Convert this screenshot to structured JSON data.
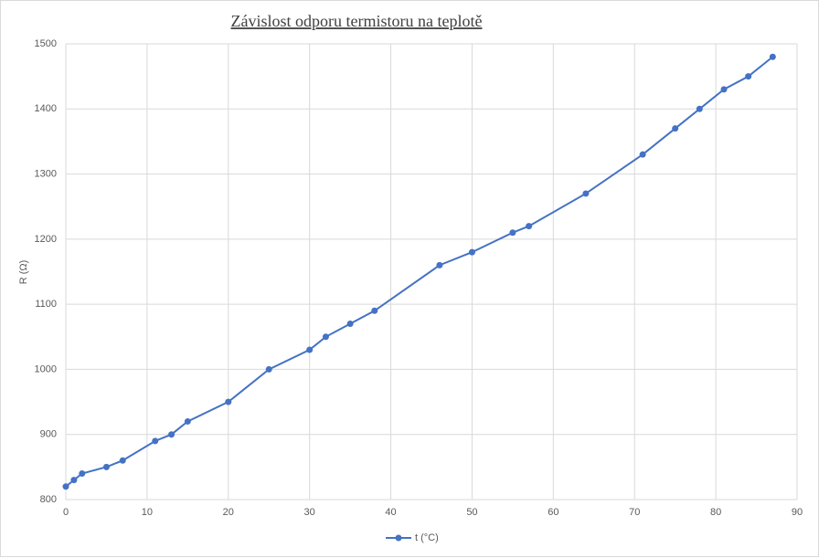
{
  "chart_data": {
    "type": "line",
    "title": "Závislost odporu termistoru na teplotě",
    "y_label": "R (Ω)",
    "x": [
      0,
      1,
      2,
      5,
      7,
      11,
      13,
      15,
      20,
      25,
      30,
      32,
      35,
      38,
      46,
      50,
      55,
      57,
      64,
      71,
      75,
      78,
      81,
      84,
      87
    ],
    "series": [
      {
        "name": "t (°C)",
        "color": "#4472c4",
        "values": [
          820,
          830,
          840,
          850,
          860,
          890,
          900,
          920,
          950,
          1000,
          1030,
          1050,
          1070,
          1090,
          1160,
          1180,
          1210,
          1220,
          1270,
          1330,
          1370,
          1400,
          1430,
          1450,
          1480
        ]
      }
    ],
    "xlim": [
      0,
      90
    ],
    "xticks": [
      0,
      10,
      20,
      30,
      40,
      50,
      60,
      70,
      80,
      90
    ],
    "ylim": [
      800,
      1500
    ],
    "yticks": [
      800,
      900,
      1000,
      1100,
      1200,
      1300,
      1400,
      1500
    ],
    "grid": true,
    "legend": "bottom"
  }
}
